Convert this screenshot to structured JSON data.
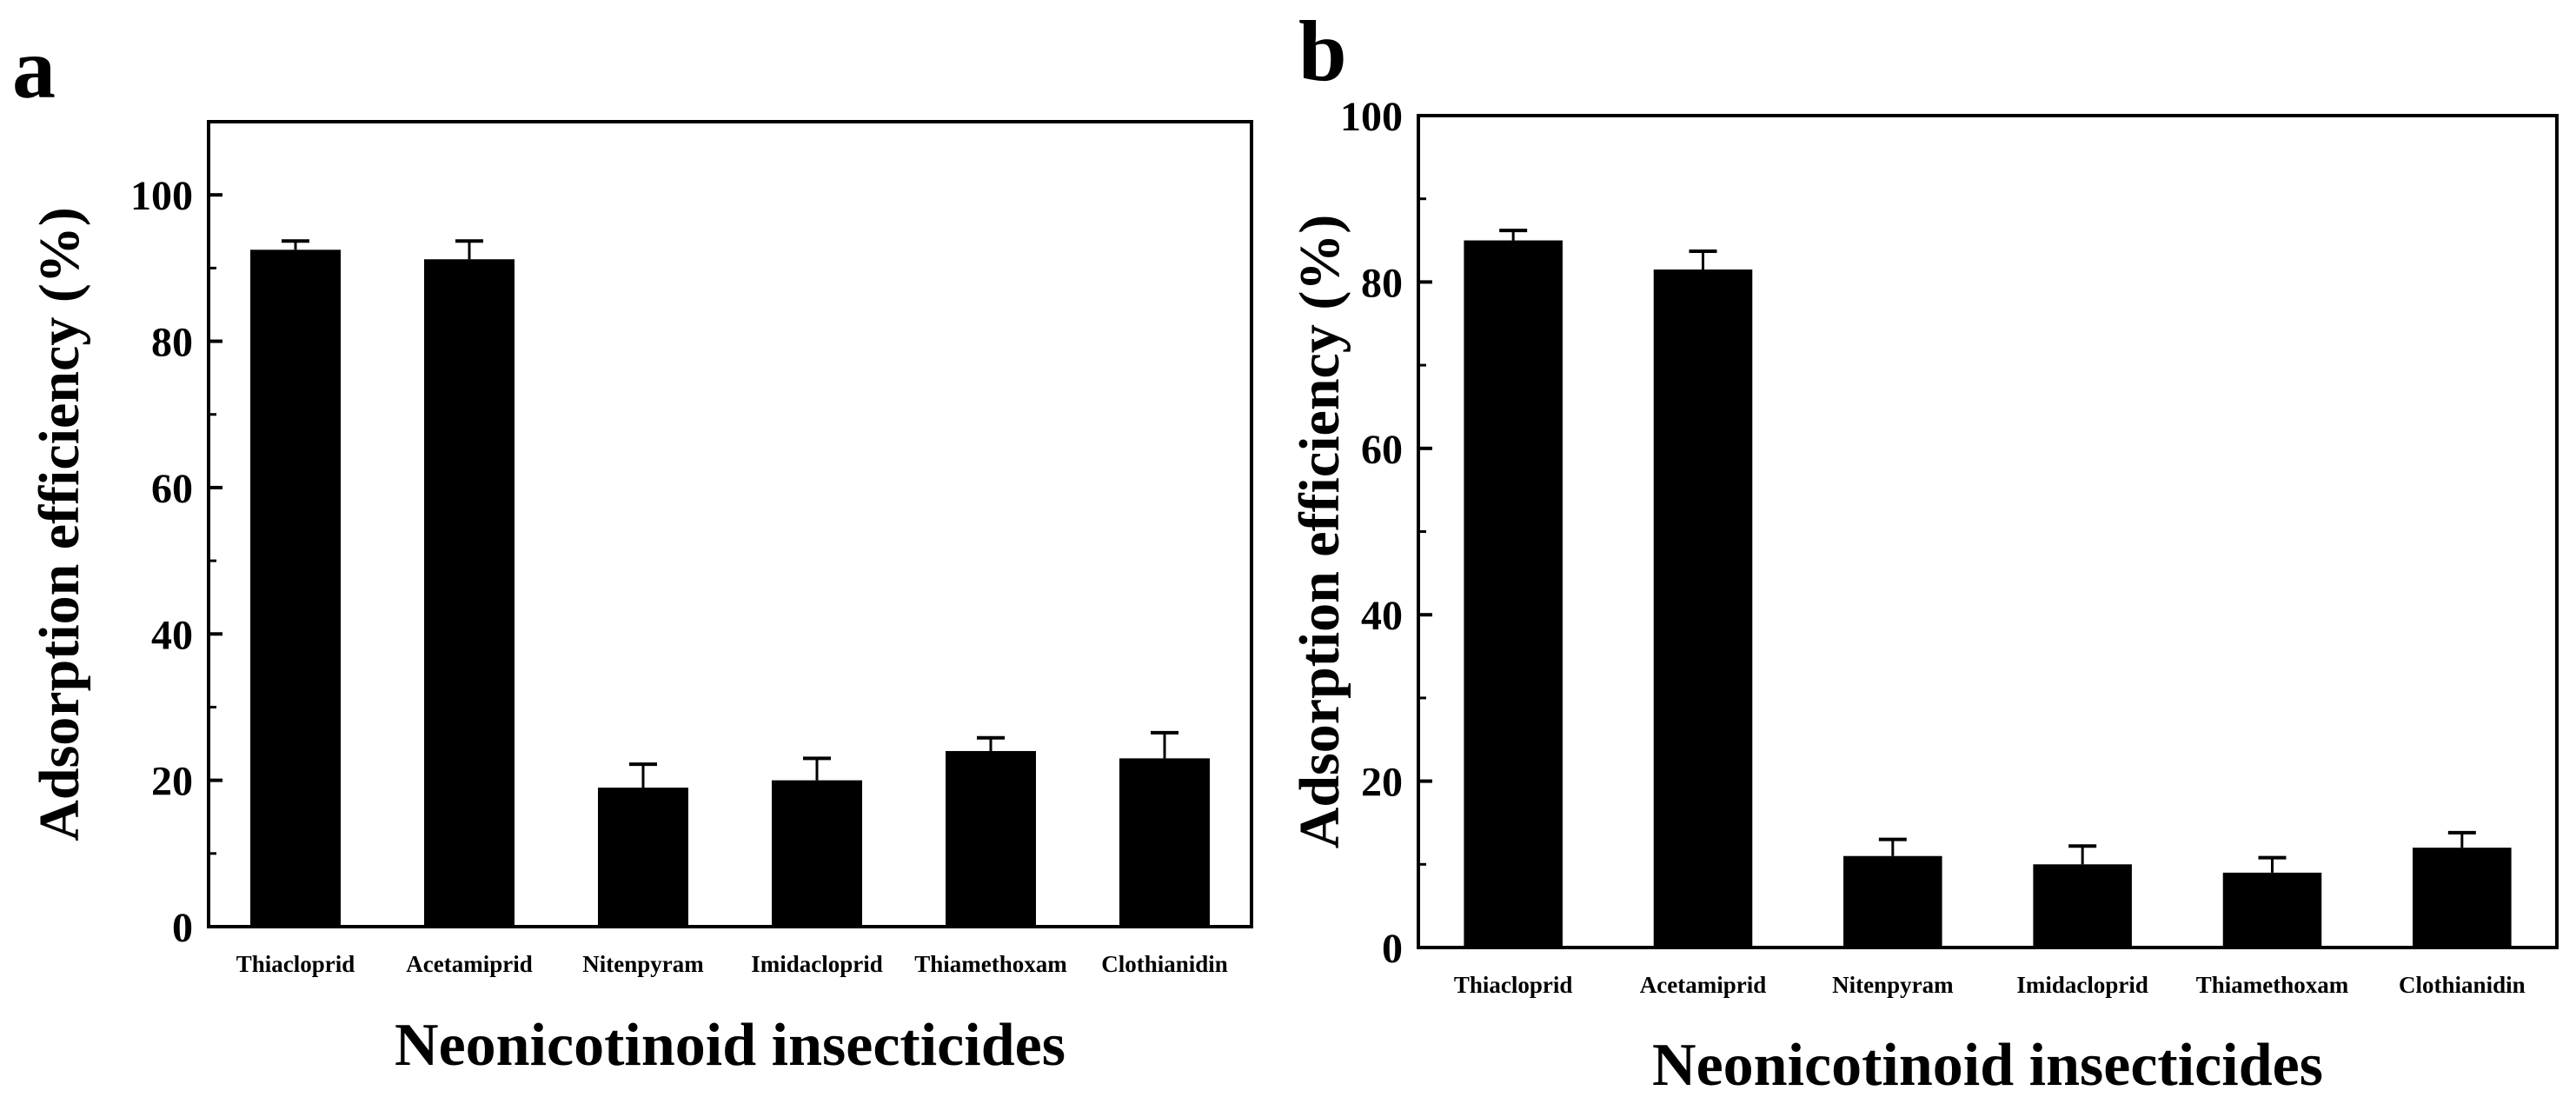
{
  "chart_data": [
    {
      "panel_label": "a",
      "type": "bar",
      "title": "",
      "xlabel": "Neonicotinoid insecticides",
      "ylabel": "Adsorption efficiency (%)",
      "categories": [
        "Thiacloprid",
        "Acetamiprid",
        "Nitenpyram",
        "Imidacloprid",
        "Thiamethoxam",
        "Clothianidin"
      ],
      "values": [
        92.5,
        91.2,
        19.0,
        20.0,
        24.0,
        23.0
      ],
      "errors": [
        1.2,
        2.5,
        3.2,
        3.0,
        1.8,
        3.5
      ],
      "ylim": [
        0,
        110
      ],
      "yticks": [
        0,
        20,
        40,
        60,
        80,
        100
      ],
      "grid": false,
      "bar_color": "#000000"
    },
    {
      "panel_label": "b",
      "type": "bar",
      "title": "",
      "xlabel": "Neonicotinoid insecticides",
      "ylabel": "Adsorption efficiency (%)",
      "categories": [
        "Thiacloprid",
        "Acetamiprid",
        "Nitenpyram",
        "Imidacloprid",
        "Thiamethoxam",
        "Clothianidin"
      ],
      "values": [
        85.0,
        81.5,
        11.0,
        10.0,
        9.0,
        12.0
      ],
      "errors": [
        1.2,
        2.2,
        2.0,
        2.2,
        1.8,
        1.8
      ],
      "ylim": [
        0,
        100
      ],
      "yticks": [
        0,
        20,
        40,
        60,
        80,
        100
      ],
      "grid": false,
      "bar_color": "#000000"
    }
  ]
}
